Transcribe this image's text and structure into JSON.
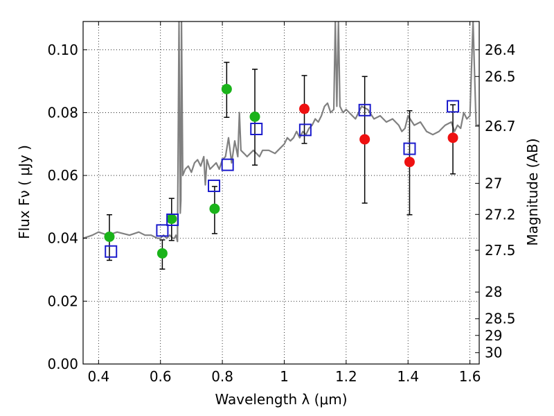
{
  "chart_data": {
    "type": "scatter",
    "xlabel": "Wavelength  λ (μm)",
    "ylabel": "Flux  Fν  ( μJy )",
    "y2label": "Magnitude (AB)",
    "xlim": [
      0.35,
      1.63
    ],
    "ylim": [
      0.0,
      0.109
    ],
    "grid": true,
    "x_ticks": [
      0.4,
      0.6,
      0.8,
      1.0,
      1.2,
      1.4,
      1.6
    ],
    "x_tick_labels": [
      "0.4",
      "0.6",
      "0.8",
      "1",
      "1.2",
      "1.4",
      "1.6"
    ],
    "y_ticks": [
      0.0,
      0.02,
      0.04,
      0.06,
      0.08,
      0.1
    ],
    "y_tick_labels": [
      "0.00",
      "0.02",
      "0.04",
      "0.06",
      "0.08",
      "0.10"
    ],
    "y2_ticks": [
      {
        "label": "26.4",
        "flux": 0.1
      },
      {
        "label": "26.5",
        "flux": 0.0915
      },
      {
        "label": "26.7",
        "flux": 0.0757
      },
      {
        "label": "27",
        "flux": 0.0575
      },
      {
        "label": "27.2",
        "flux": 0.0476
      },
      {
        "label": "27.5",
        "flux": 0.0362
      },
      {
        "label": "28",
        "flux": 0.0229
      },
      {
        "label": "28.5",
        "flux": 0.0144
      },
      {
        "label": "29",
        "flux": 0.0091
      },
      {
        "label": "30",
        "flux": 0.0036
      }
    ],
    "series": [
      {
        "marker": "circle",
        "color": "#1ab31a",
        "points": [
          {
            "x": 0.435,
            "y": 0.0405,
            "err": [
              0.033,
              0.0475
            ]
          },
          {
            "x": 0.606,
            "y": 0.0352,
            "err": [
              0.0302,
              0.0395
            ]
          },
          {
            "x": 0.636,
            "y": 0.0462,
            "err": [
              0.0393,
              0.0527
            ]
          },
          {
            "x": 0.775,
            "y": 0.0494,
            "err": [
              0.0415,
              0.0565
            ]
          },
          {
            "x": 0.814,
            "y": 0.0875,
            "err": [
              0.0785,
              0.096
            ]
          },
          {
            "x": 0.905,
            "y": 0.0787,
            "err": [
              0.0633,
              0.0938
            ]
          }
        ]
      },
      {
        "marker": "circle",
        "color": "#ee1111",
        "points": [
          {
            "x": 1.065,
            "y": 0.0812,
            "err": [
              0.0702,
              0.0918
            ]
          },
          {
            "x": 1.26,
            "y": 0.0715,
            "err": [
              0.0512,
              0.0915
            ]
          },
          {
            "x": 1.405,
            "y": 0.0643,
            "err": [
              0.0475,
              0.0806
            ]
          },
          {
            "x": 1.545,
            "y": 0.072,
            "err": [
              0.0605,
              0.0825
            ]
          }
        ]
      },
      {
        "marker": "open-square",
        "color": "#1a1acc",
        "points": [
          {
            "x": 0.44,
            "y": 0.0358
          },
          {
            "x": 0.606,
            "y": 0.0425
          },
          {
            "x": 0.639,
            "y": 0.0459
          },
          {
            "x": 0.773,
            "y": 0.0567
          },
          {
            "x": 0.817,
            "y": 0.0634
          },
          {
            "x": 0.91,
            "y": 0.0748
          },
          {
            "x": 1.068,
            "y": 0.0745
          },
          {
            "x": 1.26,
            "y": 0.0808
          },
          {
            "x": 1.405,
            "y": 0.0685
          },
          {
            "x": 1.545,
            "y": 0.082
          }
        ]
      }
    ],
    "spectrum": {
      "color": "#808080",
      "x": [
        0.35,
        0.38,
        0.4,
        0.43,
        0.46,
        0.5,
        0.53,
        0.55,
        0.57,
        0.59,
        0.6,
        0.61,
        0.62,
        0.63,
        0.64,
        0.645,
        0.65,
        0.655,
        0.66,
        0.664,
        0.666,
        0.668,
        0.672,
        0.68,
        0.69,
        0.7,
        0.71,
        0.72,
        0.73,
        0.74,
        0.745,
        0.75,
        0.76,
        0.77,
        0.78,
        0.79,
        0.8,
        0.81,
        0.82,
        0.83,
        0.84,
        0.85,
        0.855,
        0.86,
        0.87,
        0.88,
        0.89,
        0.9,
        0.91,
        0.92,
        0.93,
        0.95,
        0.97,
        0.99,
        1.0,
        1.01,
        1.02,
        1.03,
        1.04,
        1.05,
        1.06,
        1.07,
        1.08,
        1.09,
        1.1,
        1.11,
        1.12,
        1.13,
        1.14,
        1.15,
        1.16,
        1.165,
        1.17,
        1.175,
        1.18,
        1.19,
        1.2,
        1.21,
        1.22,
        1.23,
        1.24,
        1.25,
        1.27,
        1.29,
        1.31,
        1.33,
        1.35,
        1.37,
        1.38,
        1.39,
        1.4,
        1.42,
        1.44,
        1.46,
        1.48,
        1.5,
        1.52,
        1.54,
        1.55,
        1.56,
        1.57,
        1.58,
        1.59,
        1.6,
        1.61,
        1.62,
        1.63
      ],
      "y": [
        0.04,
        0.041,
        0.042,
        0.041,
        0.042,
        0.041,
        0.042,
        0.041,
        0.041,
        0.04,
        0.04,
        0.041,
        0.04,
        0.041,
        0.04,
        0.04,
        0.041,
        0.039,
        0.109,
        0.048,
        0.052,
        0.109,
        0.06,
        0.062,
        0.063,
        0.061,
        0.064,
        0.065,
        0.063,
        0.066,
        0.057,
        0.065,
        0.062,
        0.063,
        0.064,
        0.062,
        0.065,
        0.066,
        0.072,
        0.064,
        0.071,
        0.066,
        0.08,
        0.068,
        0.067,
        0.066,
        0.067,
        0.068,
        0.067,
        0.066,
        0.068,
        0.068,
        0.067,
        0.069,
        0.07,
        0.072,
        0.071,
        0.072,
        0.074,
        0.072,
        0.074,
        0.073,
        0.075,
        0.076,
        0.078,
        0.077,
        0.079,
        0.082,
        0.083,
        0.08,
        0.081,
        0.109,
        0.082,
        0.109,
        0.082,
        0.08,
        0.081,
        0.08,
        0.079,
        0.078,
        0.08,
        0.082,
        0.081,
        0.078,
        0.079,
        0.077,
        0.078,
        0.076,
        0.074,
        0.075,
        0.079,
        0.076,
        0.077,
        0.074,
        0.073,
        0.074,
        0.076,
        0.077,
        0.074,
        0.076,
        0.075,
        0.08,
        0.078,
        0.079,
        0.109,
        0.076,
        0.076
      ]
    }
  }
}
